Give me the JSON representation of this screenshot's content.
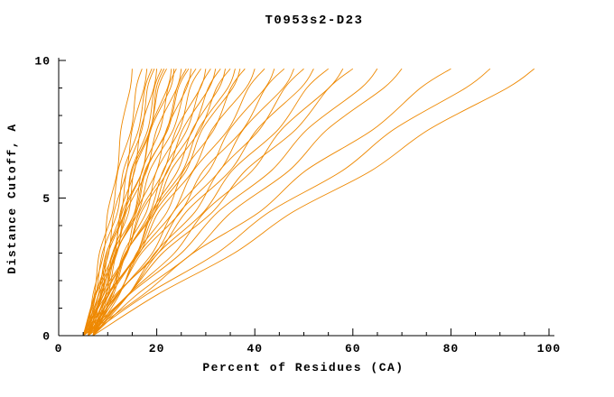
{
  "chart_data": {
    "type": "line",
    "title": "T0953s2-D23",
    "xlabel": "Percent of Residues (CA)",
    "ylabel": "Distance Cutoff, A",
    "xlim": [
      0,
      100
    ],
    "ylim": [
      0,
      10
    ],
    "x_major_ticks": [
      0,
      20,
      40,
      60,
      80,
      100
    ],
    "x_minor_step": 5,
    "y_major_ticks": [
      0,
      5,
      10
    ],
    "y_minor_step": 1,
    "grid": false,
    "legend": "none",
    "line_color": "#ee8800",
    "axis_color": "#000000",
    "background": "#ffffff",
    "y_samples": [
      0,
      1.5,
      3,
      4.5,
      6,
      7.5,
      9,
      9.7
    ],
    "curves": [
      [
        6,
        7.0,
        9.2,
        10.0,
        12.0,
        12.7,
        14.6,
        15
      ],
      [
        5,
        7.3,
        8.3,
        11.0,
        12.1,
        14.8,
        15.8,
        17
      ],
      [
        6,
        7.6,
        10.2,
        11.3,
        13.9,
        15.0,
        17.4,
        18
      ],
      [
        5,
        7.6,
        8.9,
        12.0,
        13.2,
        16.3,
        17.6,
        19
      ],
      [
        7,
        8.6,
        11.5,
        12.6,
        15.5,
        16.7,
        19.4,
        20
      ],
      [
        6,
        8.8,
        10.1,
        13.6,
        14.8,
        18.2,
        19.5,
        21
      ],
      [
        5,
        8.1,
        9.7,
        13.5,
        15.0,
        18.7,
        20.3,
        22
      ],
      [
        6,
        8.2,
        11.9,
        13.4,
        17.1,
        18.6,
        22.2,
        23
      ],
      [
        7,
        10.1,
        11.8,
        15.5,
        17.0,
        20.7,
        22.3,
        24
      ],
      [
        5,
        7.6,
        11.8,
        13.8,
        18.0,
        20.0,
        24.1,
        25
      ],
      [
        6,
        9.6,
        11.6,
        15.9,
        17.8,
        22.1,
        24.1,
        26
      ],
      [
        7,
        9.6,
        13.8,
        15.8,
        20.0,
        22.0,
        26.1,
        27
      ],
      [
        5,
        9.1,
        11.5,
        16.3,
        18.6,
        23.4,
        25.8,
        28
      ],
      [
        6,
        9.2,
        14.0,
        16.5,
        21.5,
        24.0,
        28.9,
        30
      ],
      [
        7,
        11.2,
        13.8,
        18.7,
        21.3,
        26.2,
        28.8,
        31
      ],
      [
        5,
        8.7,
        13.9,
        16.9,
        22.3,
        25.3,
        30.7,
        32
      ],
      [
        6,
        10.8,
        13.7,
        19.2,
        22.1,
        27.5,
        30.5,
        33
      ],
      [
        7,
        10.7,
        16.0,
        18.9,
        24.3,
        27.3,
        32.7,
        34
      ],
      [
        5,
        10.3,
        13.6,
        19.6,
        22.9,
        28.9,
        32.2,
        35
      ],
      [
        6,
        10.1,
        16.0,
        19.2,
        25.3,
        28.5,
        34.5,
        36
      ],
      [
        7,
        12.4,
        15.9,
        22.1,
        25.5,
        31.7,
        35.1,
        38
      ],
      [
        5,
        9.8,
        16.5,
        20.4,
        27.4,
        31.3,
        38.2,
        40
      ],
      [
        6,
        12.2,
        16.4,
        23.4,
        27.5,
        34.6,
        38.7,
        42
      ],
      [
        7,
        12.1,
        19.1,
        23.4,
        30.7,
        34.9,
        42.1,
        44
      ],
      [
        5,
        12.0,
        16.9,
        24.9,
        29.5,
        37.6,
        42.2,
        46
      ],
      [
        6,
        11.9,
        19.8,
        24.7,
        32.9,
        37.7,
        45.8,
        48
      ],
      [
        7,
        14.3,
        19.6,
        27.8,
        32.8,
        41.0,
        46.1,
        50
      ],
      [
        5,
        11.6,
        20.3,
        26.0,
        35.0,
        40.5,
        49.4,
        52
      ],
      [
        6,
        14.3,
        20.3,
        29.6,
        35.4,
        44.8,
        50.6,
        55
      ],
      [
        7,
        14.2,
        23.6,
        29.8,
        39.5,
        45.5,
        55.1,
        58
      ],
      [
        5,
        14.2,
        21.2,
        31.4,
        38.1,
        48.4,
        55.1,
        60
      ],
      [
        6,
        14.4,
        25.0,
        32.5,
        43.4,
        50.7,
        61.7,
        65
      ],
      [
        7,
        16.0,
        27.3,
        35.3,
        47.0,
        54.8,
        66.3,
        70
      ],
      [
        5,
        17.3,
        27.4,
        41.0,
        50.4,
        64.2,
        73.8,
        80
      ],
      [
        6,
        18.0,
        32.3,
        43.0,
        57.9,
        68.4,
        83.0,
        88
      ],
      [
        7,
        20.2,
        35.8,
        47.8,
        63.8,
        75.6,
        91.5,
        97
      ],
      [
        6,
        8.5,
        9.8,
        12.8,
        13.9,
        17.0,
        18.1,
        19.5
      ],
      [
        5,
        7.4,
        11.2,
        13.0,
        17.1,
        18.8,
        22.8,
        23.5
      ],
      [
        7,
        10.9,
        13.2,
        17.9,
        20.0,
        24.7,
        26.8,
        29
      ],
      [
        6,
        10.2,
        16.2,
        19.7,
        26.0,
        29.3,
        35.5,
        37
      ],
      [
        5,
        8.8,
        11.0,
        15.6,
        17.6,
        22.3,
        24.4,
        26.5
      ],
      [
        7,
        9.7,
        11.0,
        14.3,
        15.4,
        18.8,
        19.9,
        21.5
      ]
    ]
  }
}
